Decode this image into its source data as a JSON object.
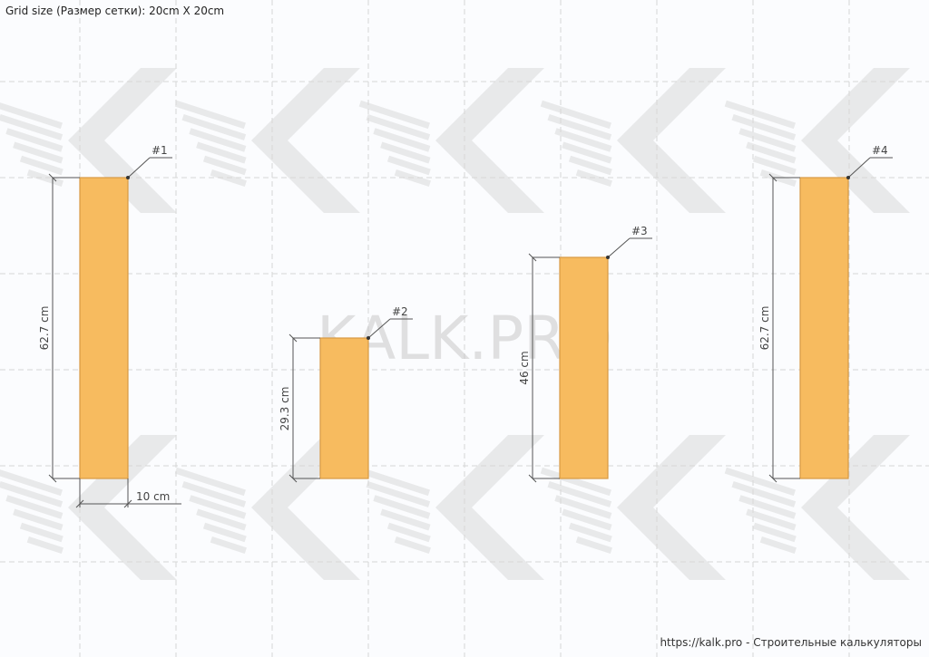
{
  "header": {
    "grid_size_text": "Grid size (Размер сетки): 20cm X 20cm"
  },
  "footer": {
    "link_text": "https://kalk.pro - Строительные калькуляторы"
  },
  "watermark": {
    "text": "KALK.PRO"
  },
  "colors": {
    "piece_fill": "#f7bb5f",
    "piece_stroke": "#d79a44",
    "grid_line": "#d6d6d6",
    "dimension_line": "#555555"
  },
  "pieces": [
    {
      "tag": "#1",
      "length_label": "62.7 cm",
      "width_label": "10 cm"
    },
    {
      "tag": "#2",
      "length_label": "29.3 cm"
    },
    {
      "tag": "#3",
      "length_label": "46 cm"
    },
    {
      "tag": "#4",
      "length_label": "62.7 cm"
    }
  ]
}
